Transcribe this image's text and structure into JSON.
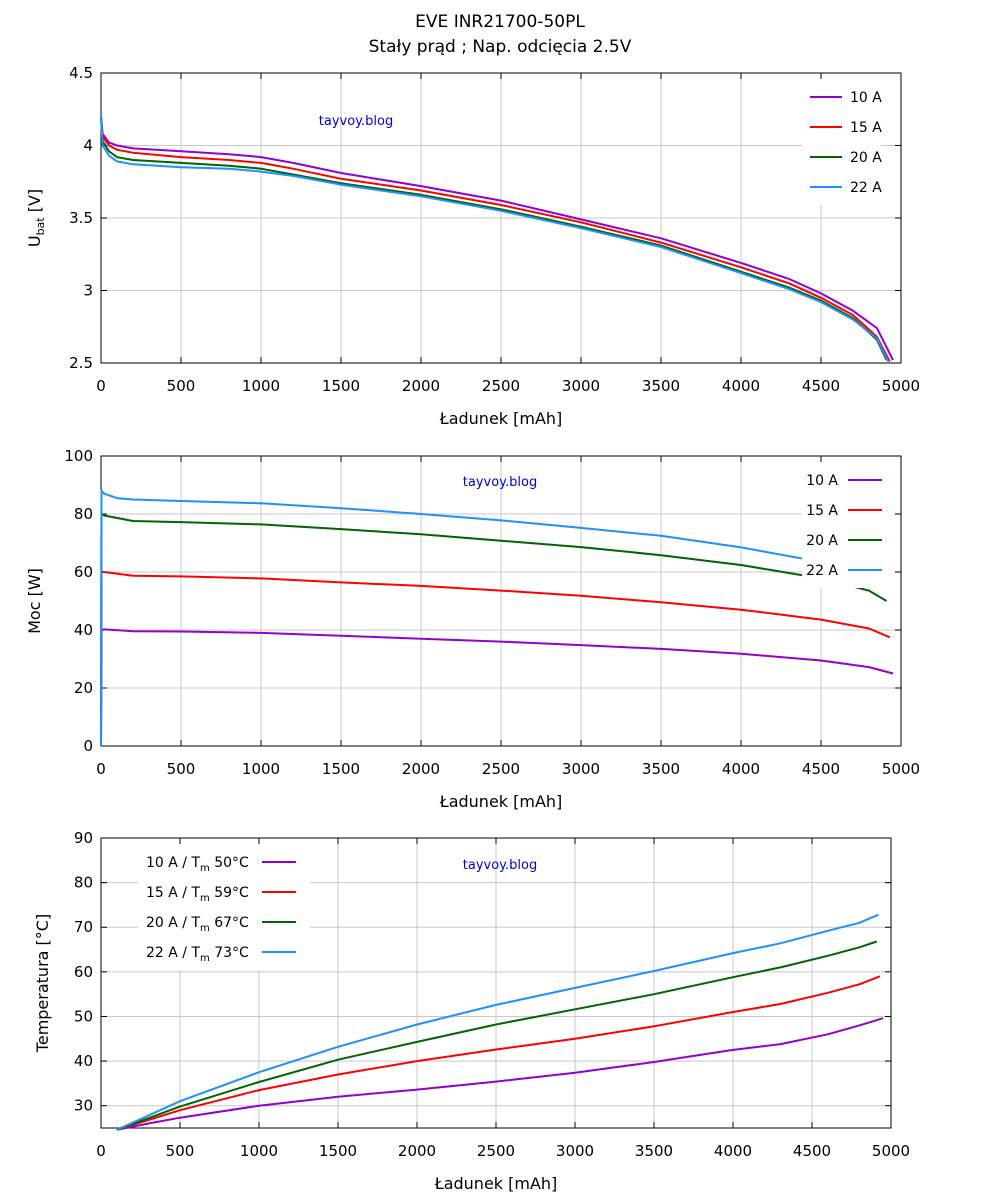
{
  "title": "EVE INR21700-50PL",
  "subtitle": "Stały prąd ; Nap. odcięcia 2.5V",
  "chart_data": [
    {
      "type": "line",
      "xlabel": "Ładunek [mAh]",
      "ylabel": "U",
      "ylabel_sub": "bat",
      "ylabel_unit": " [V]",
      "xlim": [
        0,
        5000
      ],
      "ylim": [
        2.5,
        4.5
      ],
      "xticks": [
        "0",
        "500",
        "1000",
        "1500",
        "2000",
        "2500",
        "3000",
        "3500",
        "4000",
        "4500",
        "5000"
      ],
      "yticks": [
        "2.5",
        "3",
        "3.5",
        "4",
        "4.5"
      ],
      "grid": true,
      "legend_position": "top-right",
      "watermark": "tayvoy.blog",
      "series": [
        {
          "name": "10 A",
          "color": "#9400d3",
          "points": [
            [
              0,
              4.2
            ],
            [
              10,
              4.08
            ],
            [
              50,
              4.02
            ],
            [
              100,
              4.0
            ],
            [
              200,
              3.98
            ],
            [
              500,
              3.96
            ],
            [
              800,
              3.94
            ],
            [
              1000,
              3.92
            ],
            [
              1200,
              3.88
            ],
            [
              1500,
              3.81
            ],
            [
              2000,
              3.72
            ],
            [
              2500,
              3.62
            ],
            [
              3000,
              3.49
            ],
            [
              3500,
              3.36
            ],
            [
              4000,
              3.19
            ],
            [
              4300,
              3.08
            ],
            [
              4500,
              2.98
            ],
            [
              4700,
              2.86
            ],
            [
              4850,
              2.74
            ],
            [
              4950,
              2.52
            ]
          ]
        },
        {
          "name": "15 A",
          "color": "#ff0000",
          "points": [
            [
              0,
              4.2
            ],
            [
              10,
              4.06
            ],
            [
              50,
              4.0
            ],
            [
              100,
              3.97
            ],
            [
              200,
              3.95
            ],
            [
              500,
              3.92
            ],
            [
              800,
              3.9
            ],
            [
              1000,
              3.88
            ],
            [
              1200,
              3.84
            ],
            [
              1500,
              3.77
            ],
            [
              2000,
              3.69
            ],
            [
              2500,
              3.59
            ],
            [
              3000,
              3.47
            ],
            [
              3500,
              3.33
            ],
            [
              4000,
              3.16
            ],
            [
              4300,
              3.05
            ],
            [
              4500,
              2.95
            ],
            [
              4700,
              2.83
            ],
            [
              4850,
              2.68
            ],
            [
              4930,
              2.51
            ]
          ]
        },
        {
          "name": "20 A",
          "color": "#006400",
          "points": [
            [
              0,
              4.2
            ],
            [
              10,
              4.03
            ],
            [
              50,
              3.96
            ],
            [
              100,
              3.92
            ],
            [
              200,
              3.9
            ],
            [
              500,
              3.88
            ],
            [
              800,
              3.86
            ],
            [
              1000,
              3.84
            ],
            [
              1200,
              3.8
            ],
            [
              1500,
              3.74
            ],
            [
              2000,
              3.66
            ],
            [
              2500,
              3.56
            ],
            [
              3000,
              3.44
            ],
            [
              3500,
              3.31
            ],
            [
              4000,
              3.13
            ],
            [
              4300,
              3.02
            ],
            [
              4500,
              2.93
            ],
            [
              4700,
              2.81
            ],
            [
              4850,
              2.66
            ],
            [
              4910,
              2.52
            ]
          ]
        },
        {
          "name": "22 A",
          "color": "#1e90ff",
          "points": [
            [
              0,
              4.2
            ],
            [
              10,
              4.0
            ],
            [
              50,
              3.93
            ],
            [
              100,
              3.89
            ],
            [
              200,
              3.87
            ],
            [
              500,
              3.85
            ],
            [
              800,
              3.84
            ],
            [
              1000,
              3.82
            ],
            [
              1200,
              3.79
            ],
            [
              1500,
              3.73
            ],
            [
              2000,
              3.65
            ],
            [
              2500,
              3.55
            ],
            [
              3000,
              3.43
            ],
            [
              3500,
              3.3
            ],
            [
              4000,
              3.12
            ],
            [
              4300,
              3.01
            ],
            [
              4500,
              2.92
            ],
            [
              4700,
              2.8
            ],
            [
              4850,
              2.67
            ],
            [
              4920,
              2.51
            ]
          ]
        }
      ]
    },
    {
      "type": "line",
      "xlabel": "Ładunek [mAh]",
      "ylabel": "Moc [W]",
      "xlim": [
        0,
        5000
      ],
      "ylim": [
        0,
        100
      ],
      "xticks": [
        "0",
        "500",
        "1000",
        "1500",
        "2000",
        "2500",
        "3000",
        "3500",
        "4000",
        "4500",
        "5000"
      ],
      "yticks": [
        "0",
        "20",
        "40",
        "60",
        "80",
        "100"
      ],
      "grid": true,
      "legend_position": "top-right",
      "watermark": "tayvoy.blog",
      "series": [
        {
          "name": "10 A",
          "color": "#9400d3",
          "points": [
            [
              0,
              0
            ],
            [
              3,
              40
            ],
            [
              20,
              40.2
            ],
            [
              200,
              39.6
            ],
            [
              500,
              39.5
            ],
            [
              1000,
              39
            ],
            [
              1500,
              38
            ],
            [
              2000,
              37
            ],
            [
              2500,
              36
            ],
            [
              3000,
              34.8
            ],
            [
              3500,
              33.5
            ],
            [
              4000,
              31.8
            ],
            [
              4500,
              29.5
            ],
            [
              4800,
              27.2
            ],
            [
              4950,
              25
            ]
          ]
        },
        {
          "name": "15 A",
          "color": "#ff0000",
          "points": [
            [
              0,
              0
            ],
            [
              3,
              60
            ],
            [
              20,
              60
            ],
            [
              200,
              58.7
            ],
            [
              500,
              58.5
            ],
            [
              1000,
              57.8
            ],
            [
              1500,
              56.4
            ],
            [
              2000,
              55.2
            ],
            [
              2500,
              53.6
            ],
            [
              3000,
              51.8
            ],
            [
              3500,
              49.6
            ],
            [
              4000,
              47
            ],
            [
              4500,
              43.6
            ],
            [
              4800,
              40.5
            ],
            [
              4930,
              37.5
            ]
          ]
        },
        {
          "name": "20 A",
          "color": "#006400",
          "points": [
            [
              0,
              0
            ],
            [
              3,
              80
            ],
            [
              20,
              79.5
            ],
            [
              200,
              77.6
            ],
            [
              500,
              77.2
            ],
            [
              1000,
              76.4
            ],
            [
              1500,
              74.8
            ],
            [
              2000,
              73
            ],
            [
              2500,
              70.8
            ],
            [
              3000,
              68.6
            ],
            [
              3500,
              65.8
            ],
            [
              4000,
              62.4
            ],
            [
              4500,
              57.8
            ],
            [
              4800,
              53.6
            ],
            [
              4910,
              50
            ]
          ]
        },
        {
          "name": "22 A",
          "color": "#1e90ff",
          "points": [
            [
              0,
              0
            ],
            [
              3,
              88
            ],
            [
              20,
              87
            ],
            [
              100,
              85.5
            ],
            [
              200,
              85
            ],
            [
              500,
              84.5
            ],
            [
              1000,
              83.7
            ],
            [
              1500,
              82
            ],
            [
              2000,
              80
            ],
            [
              2500,
              77.8
            ],
            [
              3000,
              75.2
            ],
            [
              3500,
              72.5
            ],
            [
              4000,
              68.5
            ],
            [
              4500,
              63.5
            ],
            [
              4800,
              59
            ],
            [
              4920,
              55
            ]
          ]
        }
      ]
    },
    {
      "type": "line",
      "xlabel": "Ładunek [mAh]",
      "ylabel": "Temperatura [°C]",
      "xlim": [
        0,
        5000
      ],
      "ylim": [
        25,
        90
      ],
      "xticks": [
        "0",
        "500",
        "1000",
        "1500",
        "2000",
        "2500",
        "3000",
        "3500",
        "4000",
        "4500",
        "5000"
      ],
      "yticks": [
        "30",
        "40",
        "50",
        "60",
        "70",
        "80",
        "90"
      ],
      "grid": true,
      "legend_position": "top-left",
      "watermark": "tayvoy.blog",
      "series": [
        {
          "name": "10 A  / T",
          "name_sub": "m",
          "name_suffix": " 50°C",
          "color": "#9400d3",
          "points": [
            [
              100,
              24.6
            ],
            [
              300,
              26
            ],
            [
              500,
              27.3
            ],
            [
              1000,
              30
            ],
            [
              1500,
              32
            ],
            [
              2000,
              33.6
            ],
            [
              2500,
              35.4
            ],
            [
              3000,
              37.4
            ],
            [
              3500,
              39.8
            ],
            [
              4000,
              42.5
            ],
            [
              4300,
              43.8
            ],
            [
              4600,
              46
            ],
            [
              4800,
              48
            ],
            [
              4950,
              49.6
            ]
          ]
        },
        {
          "name": "15 A  / T",
          "name_sub": "m",
          "name_suffix": " 59°C",
          "color": "#ff0000",
          "points": [
            [
              100,
              24.6
            ],
            [
              300,
              26.8
            ],
            [
              500,
              29
            ],
            [
              1000,
              33.5
            ],
            [
              1500,
              37
            ],
            [
              2000,
              40
            ],
            [
              2500,
              42.6
            ],
            [
              3000,
              45
            ],
            [
              3500,
              47.8
            ],
            [
              4000,
              51
            ],
            [
              4300,
              52.8
            ],
            [
              4600,
              55.3
            ],
            [
              4800,
              57.2
            ],
            [
              4930,
              59
            ]
          ]
        },
        {
          "name": "20 A  / T",
          "name_sub": "m",
          "name_suffix": " 67°C",
          "color": "#006400",
          "points": [
            [
              100,
              24.6
            ],
            [
              300,
              27.2
            ],
            [
              500,
              29.8
            ],
            [
              1000,
              35.3
            ],
            [
              1500,
              40.3
            ],
            [
              2000,
              44.3
            ],
            [
              2500,
              48.2
            ],
            [
              3000,
              51.6
            ],
            [
              3500,
              55
            ],
            [
              4000,
              58.8
            ],
            [
              4300,
              61
            ],
            [
              4600,
              63.6
            ],
            [
              4800,
              65.5
            ],
            [
              4910,
              66.8
            ]
          ]
        },
        {
          "name": "22 A  / T",
          "name_sub": "m",
          "name_suffix": " 73°C",
          "color": "#1e90ff",
          "points": [
            [
              100,
              24.6
            ],
            [
              300,
              27.8
            ],
            [
              500,
              31
            ],
            [
              1000,
              37.5
            ],
            [
              1500,
              43.2
            ],
            [
              2000,
              48.2
            ],
            [
              2500,
              52.6
            ],
            [
              3000,
              56.4
            ],
            [
              3500,
              60.2
            ],
            [
              4000,
              64.2
            ],
            [
              4300,
              66.4
            ],
            [
              4600,
              69.2
            ],
            [
              4800,
              71
            ],
            [
              4920,
              72.8
            ]
          ]
        }
      ]
    }
  ]
}
